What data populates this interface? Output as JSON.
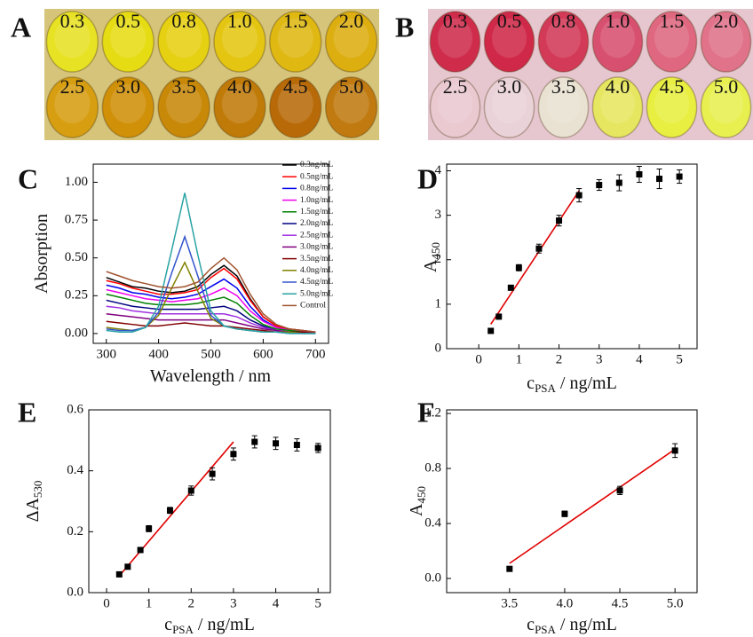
{
  "photos": [
    {
      "panel": "A",
      "labels": [
        "0.3",
        "0.5",
        "0.8",
        "1.0",
        "1.5",
        "2.0",
        "2.5",
        "3.0",
        "3.5",
        "4.0",
        "4.5",
        "5.0"
      ],
      "background": "#d6c47a",
      "colors": [
        "#e8e224",
        "#e6dc14",
        "#e6d012",
        "#e4c612",
        "#dfb812",
        "#dcae10",
        "#d69e10",
        "#d09008",
        "#c88808",
        "#c07a08",
        "#b86a08",
        "#c07a10"
      ]
    },
    {
      "panel": "B",
      "labels": [
        "0.3",
        "0.5",
        "0.8",
        "1.0",
        "1.5",
        "2.0",
        "2.5",
        "3.0",
        "3.5",
        "4.0",
        "4.5",
        "5.0"
      ],
      "background": "#e6c6cf",
      "colors": [
        "#cf2c4c",
        "#d02848",
        "#d33a58",
        "#d85070",
        "#df6880",
        "#e0728a",
        "#eac9d1",
        "#ead2d9",
        "#e9e2d2",
        "#e6e660",
        "#e8ef40",
        "#e8f050"
      ]
    }
  ],
  "chart_data": [
    {
      "panel": "C",
      "type": "line",
      "xlabel": [
        "Wavelength / nm"
      ],
      "ylabel": [
        "Absorption"
      ],
      "xlim": [
        275,
        725
      ],
      "xticks": [
        300,
        400,
        500,
        600,
        700
      ],
      "ylim": [
        -0.065,
        1.12
      ],
      "yticks": [
        {
          "value": 0,
          "label": "0.00"
        },
        {
          "value": 0.25,
          "label": "0.25"
        },
        {
          "value": 0.5,
          "label": "0.50"
        },
        {
          "value": 0.75,
          "label": "0.75"
        },
        {
          "value": 1,
          "label": "1.00"
        }
      ],
      "x": [
        300,
        325,
        350,
        375,
        400,
        425,
        450,
        475,
        500,
        525,
        550,
        575,
        600,
        625,
        650,
        675,
        700
      ],
      "series": [
        {
          "name": "0.3ng/mL",
          "color": "#000000",
          "values": [
            0.37,
            0.34,
            0.31,
            0.3,
            0.28,
            0.27,
            0.28,
            0.31,
            0.39,
            0.45,
            0.38,
            0.23,
            0.11,
            0.05,
            0.03,
            0.02,
            0.01
          ]
        },
        {
          "name": "0.5ng/mL",
          "color": "#ff0000",
          "values": [
            0.35,
            0.33,
            0.3,
            0.28,
            0.26,
            0.26,
            0.27,
            0.29,
            0.37,
            0.43,
            0.36,
            0.22,
            0.11,
            0.05,
            0.03,
            0.02,
            0.01
          ]
        },
        {
          "name": "0.8ng/mL",
          "color": "#0000ee",
          "values": [
            0.32,
            0.3,
            0.27,
            0.26,
            0.24,
            0.23,
            0.24,
            0.26,
            0.31,
            0.36,
            0.3,
            0.18,
            0.09,
            0.04,
            0.02,
            0.01,
            0.01
          ]
        },
        {
          "name": "1.0ng/mL",
          "color": "#ee00ee",
          "values": [
            0.29,
            0.27,
            0.25,
            0.23,
            0.22,
            0.21,
            0.22,
            0.23,
            0.26,
            0.3,
            0.25,
            0.15,
            0.08,
            0.04,
            0.02,
            0.01,
            0.01
          ]
        },
        {
          "name": "1.5ng/mL",
          "color": "#008000",
          "values": [
            0.26,
            0.24,
            0.22,
            0.2,
            0.19,
            0.19,
            0.19,
            0.2,
            0.22,
            0.24,
            0.2,
            0.12,
            0.06,
            0.03,
            0.02,
            0.01,
            0.01
          ]
        },
        {
          "name": "2.0ng/mL",
          "color": "#000080",
          "values": [
            0.22,
            0.2,
            0.18,
            0.17,
            0.16,
            0.16,
            0.16,
            0.16,
            0.17,
            0.18,
            0.15,
            0.09,
            0.05,
            0.02,
            0.01,
            0.01,
            0.01
          ]
        },
        {
          "name": "2.5ng/mL",
          "color": "#a030e0",
          "values": [
            0.18,
            0.17,
            0.15,
            0.14,
            0.13,
            0.13,
            0.13,
            0.13,
            0.13,
            0.13,
            0.11,
            0.07,
            0.04,
            0.02,
            0.01,
            0.01,
            0.01
          ]
        },
        {
          "name": "3.0ng/mL",
          "color": "#800080",
          "values": [
            0.13,
            0.12,
            0.11,
            0.1,
            0.09,
            0.09,
            0.09,
            0.09,
            0.09,
            0.09,
            0.07,
            0.05,
            0.03,
            0.02,
            0.01,
            0.01,
            0.01
          ]
        },
        {
          "name": "3.5ng/mL",
          "color": "#800000",
          "values": [
            0.08,
            0.07,
            0.06,
            0.05,
            0.05,
            0.06,
            0.07,
            0.06,
            0.05,
            0.05,
            0.04,
            0.03,
            0.02,
            0.01,
            0.01,
            0.01,
            0
          ]
        },
        {
          "name": "4.0ng/mL",
          "color": "#808000",
          "values": [
            0.04,
            0.03,
            0.02,
            0.04,
            0.12,
            0.3,
            0.47,
            0.28,
            0.1,
            0.05,
            0.03,
            0.02,
            0.01,
            0.01,
            0.01,
            0,
            0
          ]
        },
        {
          "name": "4.5ng/mL",
          "color": "#3355cc",
          "values": [
            0.03,
            0.02,
            0.02,
            0.04,
            0.14,
            0.4,
            0.64,
            0.38,
            0.12,
            0.05,
            0.03,
            0.02,
            0.01,
            0.01,
            0,
            0,
            0
          ]
        },
        {
          "name": "5.0ng/mL",
          "color": "#2aa3a3",
          "values": [
            0.02,
            0.01,
            0.01,
            0.04,
            0.18,
            0.55,
            0.93,
            0.52,
            0.15,
            0.05,
            0.03,
            0.02,
            0.01,
            0.01,
            0,
            0,
            0
          ]
        },
        {
          "name": "Control",
          "color": "#a0522d",
          "values": [
            0.41,
            0.38,
            0.35,
            0.33,
            0.31,
            0.3,
            0.31,
            0.34,
            0.43,
            0.5,
            0.42,
            0.26,
            0.13,
            0.06,
            0.03,
            0.02,
            0.01
          ]
        }
      ]
    },
    {
      "panel": "D",
      "type": "scatter",
      "xlabel": [
        "c",
        "PSA",
        " / ng/mL"
      ],
      "ylabel": [
        "A",
        "450"
      ],
      "xlim": [
        -0.8,
        5.44
      ],
      "xticks": [
        0,
        1,
        2,
        3,
        4,
        5
      ],
      "ylim": [
        0,
        4.15
      ],
      "yticks": [
        0,
        1,
        2,
        3,
        4
      ],
      "points": {
        "color": "#000000",
        "x": [
          0.3,
          0.5,
          0.8,
          1.0,
          1.5,
          2.0,
          2.5,
          3.0,
          3.5,
          4.0,
          4.5,
          5.0
        ],
        "values": [
          0.4,
          0.72,
          1.37,
          1.82,
          2.25,
          2.88,
          3.45,
          3.68,
          3.73,
          3.92,
          3.82,
          3.87
        ],
        "errors": [
          0.03,
          0.04,
          0.05,
          0.07,
          0.1,
          0.12,
          0.15,
          0.12,
          0.18,
          0.18,
          0.22,
          0.15
        ]
      },
      "fit": {
        "color": "#e00000",
        "x": [
          0.3,
          2.5
        ],
        "values": [
          0.55,
          3.55
        ]
      }
    },
    {
      "panel": "E",
      "type": "scatter",
      "xlabel": [
        "c",
        "PSA",
        " / ng/mL"
      ],
      "ylabel": [
        "ΔA",
        "530"
      ],
      "xlim": [
        -0.42,
        5.29
      ],
      "xticks": [
        0,
        1,
        2,
        3,
        4,
        5
      ],
      "ylim": [
        0,
        0.6
      ],
      "yticks": [
        {
          "value": 0,
          "label": "0.0"
        },
        0.2,
        0.4,
        0.6
      ],
      "points": {
        "color": "#000000",
        "x": [
          0.3,
          0.5,
          0.8,
          1.0,
          1.5,
          2.0,
          2.5,
          3.0,
          3.5,
          4.0,
          4.5,
          5.0
        ],
        "values": [
          0.06,
          0.085,
          0.14,
          0.21,
          0.27,
          0.335,
          0.39,
          0.455,
          0.495,
          0.49,
          0.485,
          0.475
        ],
        "errors": [
          0.005,
          0.005,
          0.005,
          0.01,
          0.01,
          0.015,
          0.02,
          0.02,
          0.02,
          0.02,
          0.02,
          0.015
        ]
      },
      "fit": {
        "color": "#e00000",
        "x": [
          0.3,
          3.0
        ],
        "values": [
          0.055,
          0.495
        ]
      }
    },
    {
      "panel": "F",
      "type": "scatter",
      "xlabel": [
        "c",
        "PSA",
        " / ng/mL"
      ],
      "ylabel": [
        "A",
        "450"
      ],
      "xlim": [
        2.93,
        5.2
      ],
      "xticks": [
        3.5,
        {
          "value": 4,
          "label": "4.0"
        },
        4.5,
        {
          "value": 5,
          "label": "5.0"
        }
      ],
      "ylim": [
        -0.103,
        1.226
      ],
      "yticks": [
        {
          "value": 0,
          "label": "0.0"
        },
        0.4,
        0.8,
        1.2
      ],
      "points": {
        "color": "#000000",
        "x": [
          3.5,
          4.0,
          4.5,
          5.0
        ],
        "values": [
          0.07,
          0.47,
          0.64,
          0.93
        ],
        "errors": [
          0.01,
          0.02,
          0.03,
          0.05
        ]
      },
      "fit": {
        "color": "#e00000",
        "x": [
          3.5,
          5.0
        ],
        "values": [
          0.11,
          0.94
        ]
      }
    }
  ]
}
